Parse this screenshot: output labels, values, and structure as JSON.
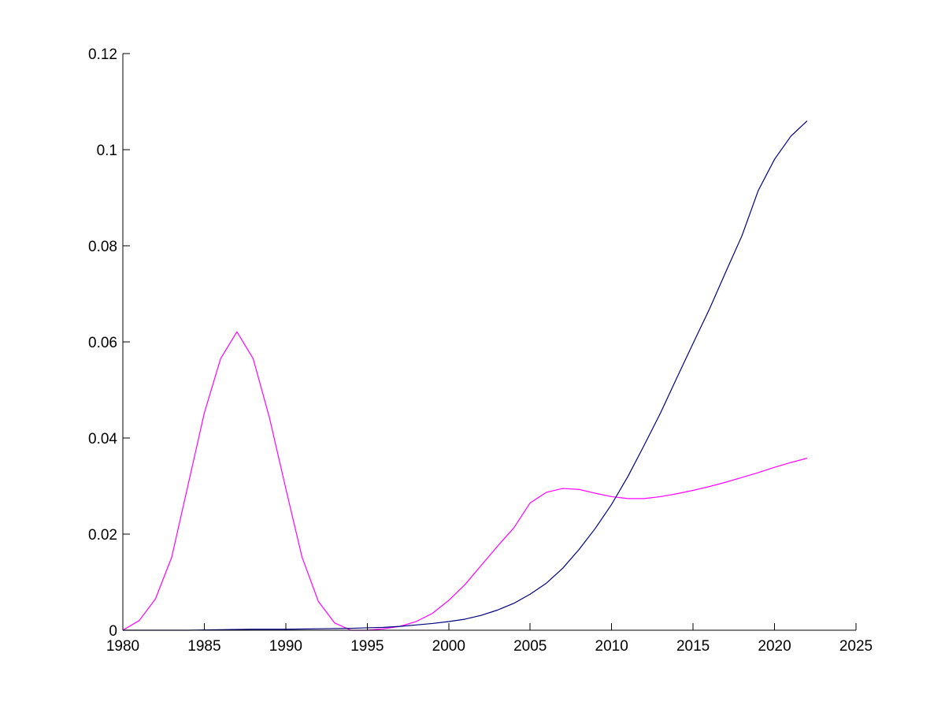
{
  "chart_data": {
    "type": "line",
    "title": "",
    "xlabel": "",
    "ylabel": "",
    "xlim": [
      1980,
      2025
    ],
    "ylim": [
      0,
      0.12
    ],
    "x_ticks": [
      1980,
      1985,
      1990,
      1995,
      2000,
      2005,
      2010,
      2015,
      2020,
      2025
    ],
    "x_tick_labels": [
      "1980",
      "1985",
      "1990",
      "1995",
      "2000",
      "2005",
      "2010",
      "2015",
      "2020",
      "2025"
    ],
    "y_ticks": [
      0,
      0.02,
      0.04,
      0.06,
      0.08,
      0.1,
      0.12
    ],
    "y_tick_labels": [
      "0",
      "0.02",
      "0.04",
      "0.06",
      "0.08",
      "0.1",
      "0.12"
    ],
    "grid": false,
    "legend": "none",
    "series": [
      {
        "color": "#ff00ff",
        "x": [
          1980,
          1981,
          1982,
          1983,
          1984,
          1985,
          1986,
          1987,
          1988,
          1989,
          1990,
          1991,
          1992,
          1993,
          1994,
          1995,
          1996,
          1997,
          1998,
          1999,
          2000,
          2001,
          2002,
          2003,
          2004,
          2005,
          2006,
          2007,
          2008,
          2009,
          2010,
          2011,
          2012,
          2013,
          2014,
          2015,
          2016,
          2017,
          2018,
          2019,
          2020,
          2021,
          2022
        ],
        "y": [
          0.0,
          0.002,
          0.0065,
          0.0152,
          0.0302,
          0.0452,
          0.0565,
          0.0621,
          0.0565,
          0.0442,
          0.0295,
          0.0152,
          0.006,
          0.0015,
          0.0,
          0.0,
          0.0003,
          0.0008,
          0.0018,
          0.0035,
          0.0062,
          0.0095,
          0.0135,
          0.0175,
          0.0213,
          0.0265,
          0.0287,
          0.0295,
          0.0293,
          0.0285,
          0.0278,
          0.0274,
          0.0274,
          0.0278,
          0.0284,
          0.0291,
          0.0299,
          0.0308,
          0.0318,
          0.0328,
          0.0339,
          0.0349,
          0.0358
        ]
      },
      {
        "color": "#000080",
        "x": [
          1980,
          1982,
          1984,
          1986,
          1988,
          1990,
          1992,
          1994,
          1995,
          1996,
          1997,
          1998,
          1999,
          2000,
          2001,
          2002,
          2003,
          2004,
          2005,
          2006,
          2007,
          2008,
          2009,
          2010,
          2011,
          2012,
          2013,
          2014,
          2015,
          2016,
          2017,
          2018,
          2019,
          2020,
          2021,
          2022
        ],
        "y": [
          0.0,
          0.0,
          0.0,
          0.0001,
          0.0002,
          0.0002,
          0.0003,
          0.0004,
          0.0005,
          0.0006,
          0.0008,
          0.0011,
          0.0014,
          0.0018,
          0.0023,
          0.0031,
          0.0042,
          0.0056,
          0.0075,
          0.0098,
          0.0129,
          0.0168,
          0.0212,
          0.0262,
          0.032,
          0.0385,
          0.0452,
          0.0525,
          0.0597,
          0.0668,
          0.0745,
          0.0821,
          0.0915,
          0.098,
          0.1028,
          0.106
        ]
      }
    ]
  }
}
